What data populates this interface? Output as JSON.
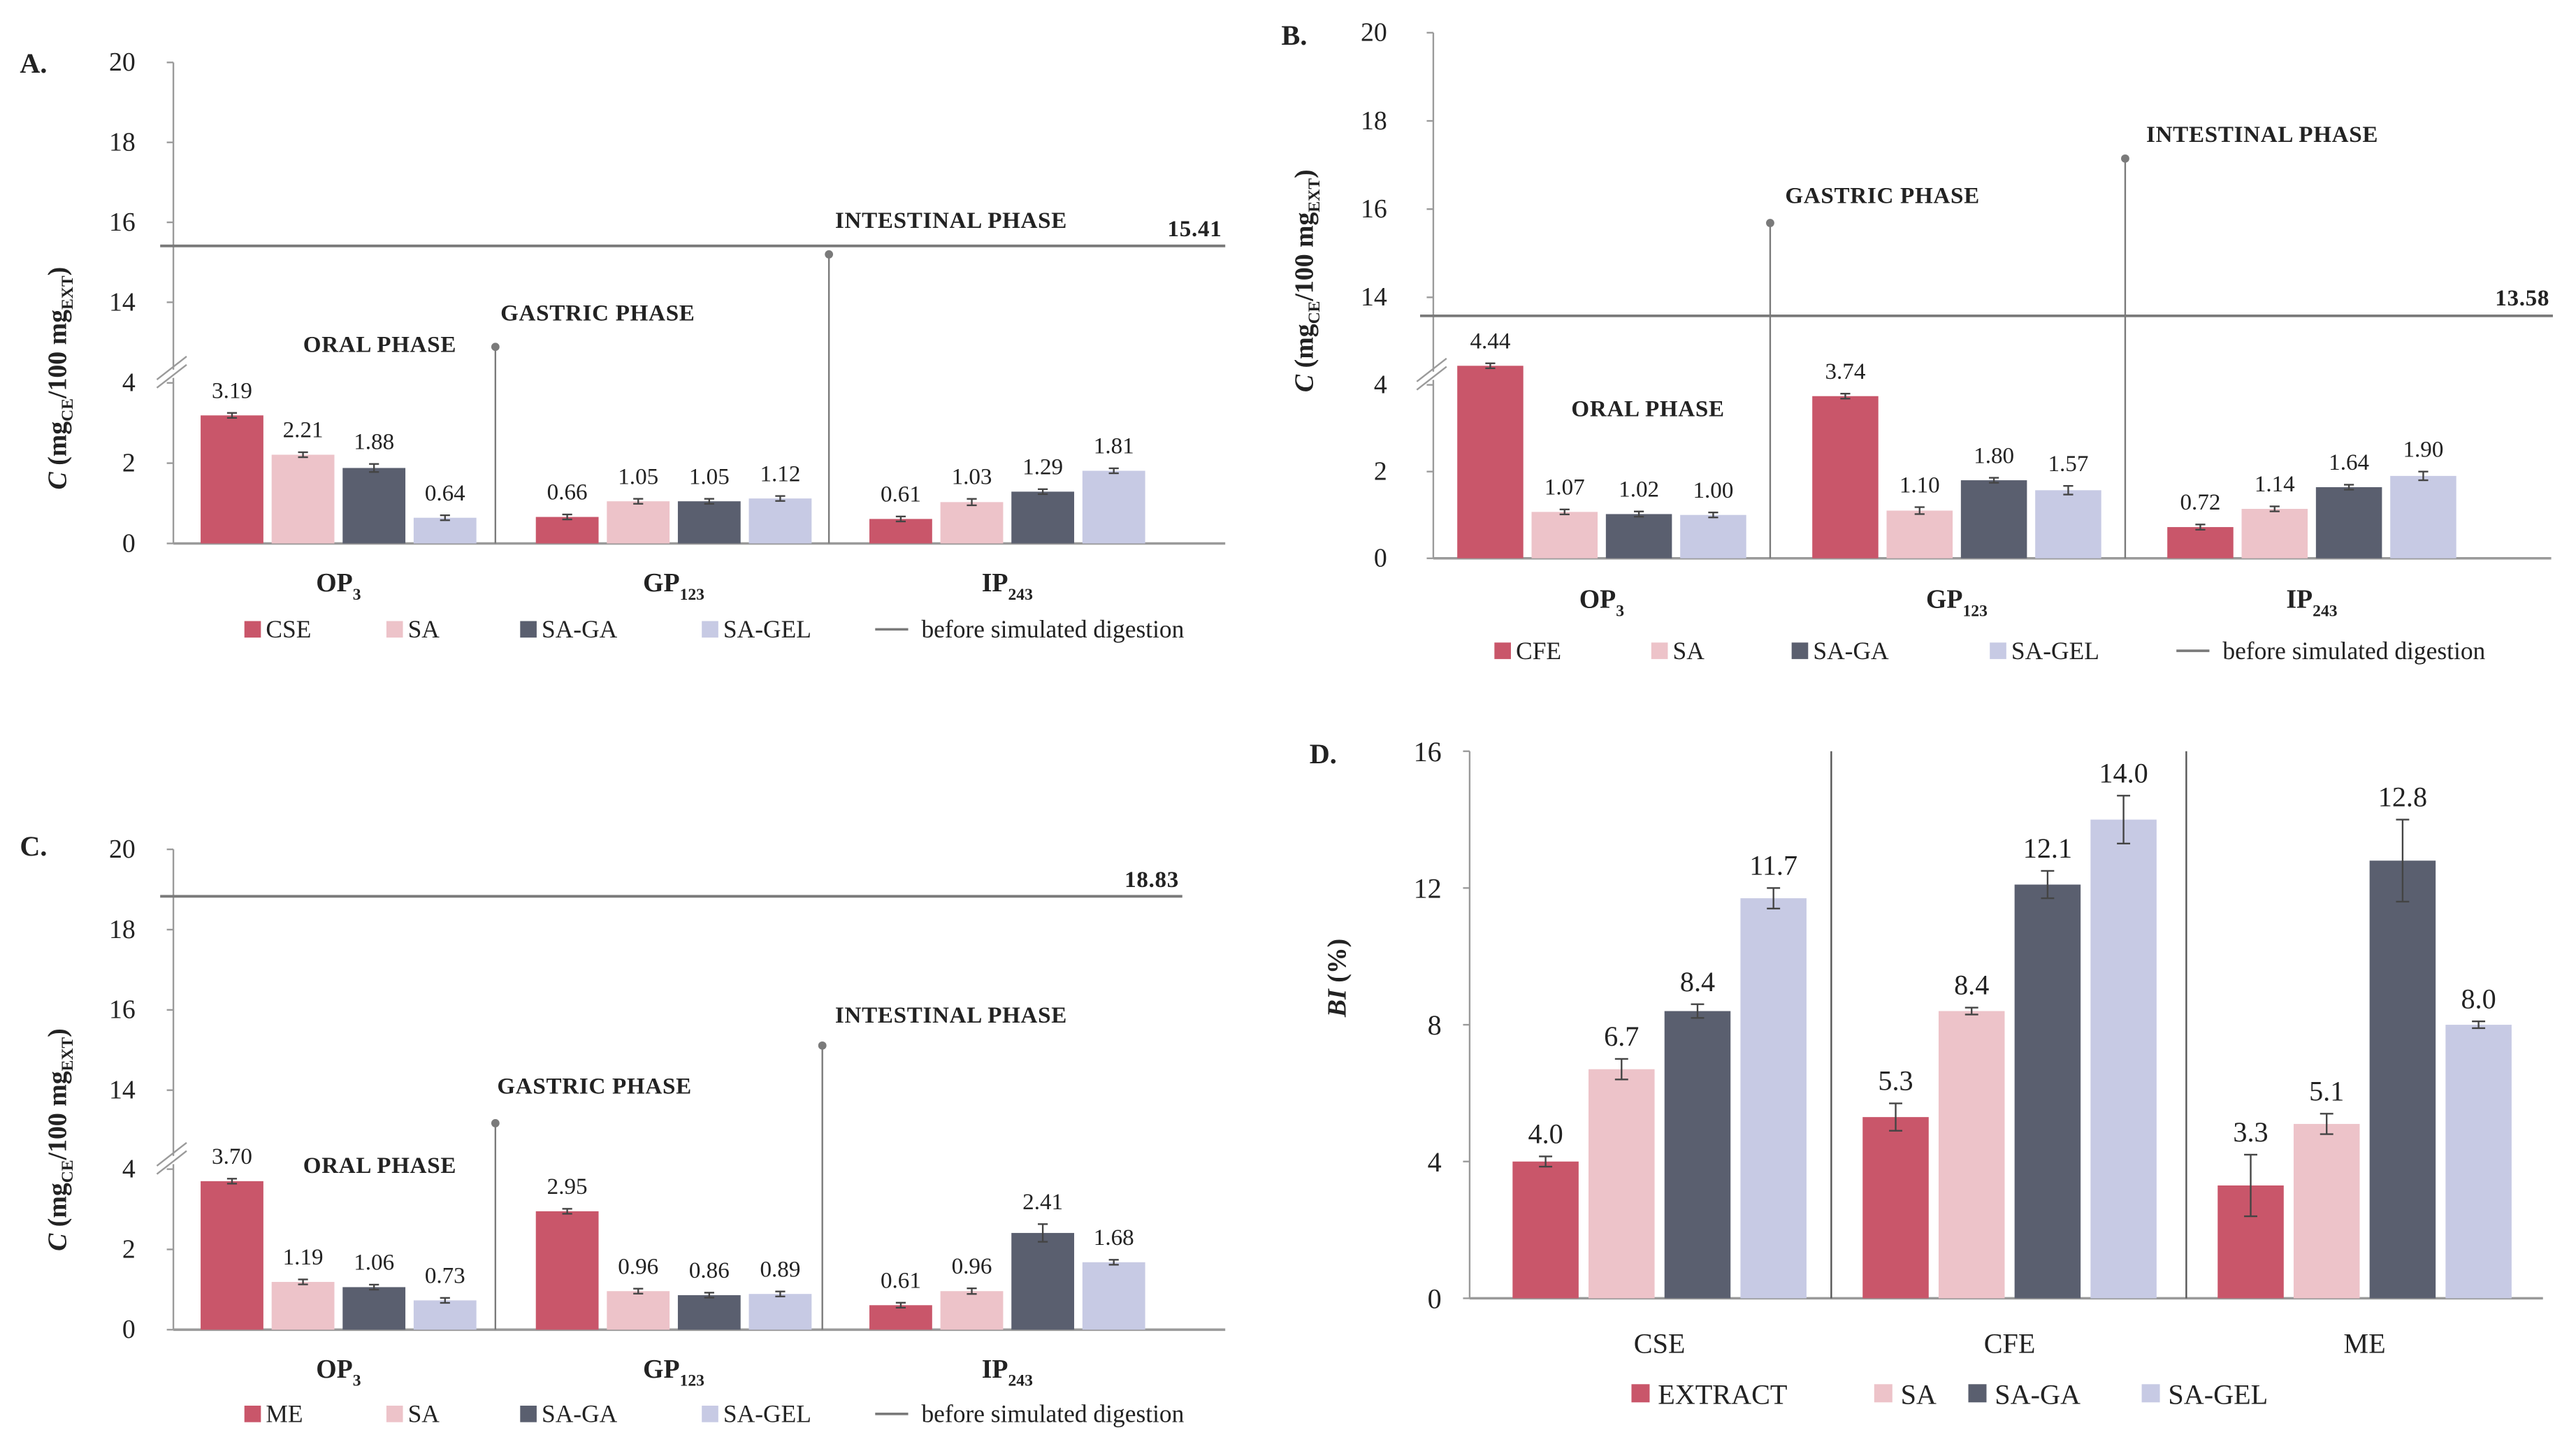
{
  "colors": {
    "extract": "#c9566a",
    "SA": "#edc3c9",
    "SA-GA": "#5a5f6f",
    "SA-GEL": "#c7cae4",
    "reference": "#7a7a7a",
    "axis": "#9a9a9a"
  },
  "chart_data": [
    {
      "type": "bar",
      "panel": "A.",
      "ylabel": {
        "main": "C",
        "open": " (mg",
        "sub1": "CE",
        "mid": "/100 mg",
        "sub2": "EXT",
        "close": ")"
      },
      "y_ticks": [
        0,
        2,
        4,
        14,
        16,
        18,
        20
      ],
      "ylim": [
        0,
        20
      ],
      "axis_break": [
        4.6,
        13.4
      ],
      "categories": [
        {
          "main": "OP",
          "sub": "3"
        },
        {
          "main": "GP",
          "sub": "123"
        },
        {
          "main": "IP",
          "sub": "243"
        }
      ],
      "series": [
        {
          "name": "CSE",
          "values": [
            3.19,
            0.66,
            0.61
          ],
          "errors": [
            0.04,
            0.04,
            0.03
          ],
          "labels": [
            "3.19",
            "0.66",
            "0.61"
          ]
        },
        {
          "name": "SA",
          "values": [
            2.21,
            1.05,
            1.03
          ],
          "errors": [
            0.06,
            0.04,
            0.08
          ],
          "labels": [
            "2.21",
            "1.05",
            "1.03"
          ]
        },
        {
          "name": "SA-GA",
          "values": [
            1.88,
            1.05,
            1.29
          ],
          "errors": [
            0.1,
            0.04,
            0.05
          ],
          "labels": [
            "1.88",
            "1.05",
            "1.29"
          ]
        },
        {
          "name": "SA-GEL",
          "values": [
            0.64,
            1.12,
            1.81
          ],
          "errors": [
            0.04,
            0.03,
            0.06
          ],
          "labels": [
            "0.64",
            "1.12",
            "1.81"
          ]
        }
      ],
      "reference": {
        "name": "before simulated digestion",
        "value": 15.41,
        "label": "15.41"
      },
      "phases": {
        "oral": "ORAL PHASE",
        "gastric": "GASTRIC PHASE",
        "intestinal": "INTESTINAL PHASE"
      },
      "grid": false,
      "legend": "bottom"
    },
    {
      "type": "bar",
      "panel": "B.",
      "ylabel": {
        "main": "C",
        "open": " (mg",
        "sub1": "CE",
        "mid": "/100 mg",
        "sub2": "EXT",
        "close": ")"
      },
      "y_ticks": [
        0,
        2,
        4,
        14,
        16,
        18,
        20
      ],
      "ylim": [
        0,
        20
      ],
      "axis_break": [
        4.6,
        13.4
      ],
      "categories": [
        {
          "main": "OP",
          "sub": "3"
        },
        {
          "main": "GP",
          "sub": "123"
        },
        {
          "main": "IP",
          "sub": "243"
        }
      ],
      "series": [
        {
          "name": "CFE",
          "values": [
            4.44,
            3.74,
            0.72
          ],
          "errors": [
            0.03,
            0.03,
            0.06
          ],
          "labels": [
            "4.44",
            "3.74",
            "0.72"
          ]
        },
        {
          "name": "SA",
          "values": [
            1.07,
            1.1,
            1.14
          ],
          "errors": [
            0.05,
            0.08,
            0.03
          ],
          "labels": [
            "1.07",
            "1.10",
            "1.14"
          ]
        },
        {
          "name": "SA-GA",
          "values": [
            1.02,
            1.8,
            1.64
          ],
          "errors": [
            0.06,
            0.05,
            0.05
          ],
          "labels": [
            "1.02",
            "1.80",
            "1.64"
          ]
        },
        {
          "name": "SA-GEL",
          "values": [
            1.0,
            1.57,
            1.9
          ],
          "errors": [
            0.03,
            0.1,
            0.1
          ],
          "labels": [
            "1.00",
            "1.57",
            "1.90"
          ]
        }
      ],
      "reference": {
        "name": "before simulated digestion",
        "value": 13.58,
        "label": "13.58"
      },
      "phases": {
        "oral": "ORAL PHASE",
        "gastric": "GASTRIC PHASE",
        "intestinal": "INTESTINAL PHASE"
      },
      "grid": false,
      "legend": "bottom"
    },
    {
      "type": "bar",
      "panel": "C.",
      "ylabel": {
        "main": "C",
        "open": " (mg",
        "sub1": "CE",
        "mid": "/100 mg",
        "sub2": "EXT",
        "close": ")"
      },
      "y_ticks": [
        0,
        2,
        4,
        14,
        16,
        18,
        20
      ],
      "ylim": [
        0,
        20
      ],
      "axis_break": [
        4.6,
        13.4
      ],
      "categories": [
        {
          "main": "OP",
          "sub": "3"
        },
        {
          "main": "GP",
          "sub": "123"
        },
        {
          "main": "IP",
          "sub": "243"
        }
      ],
      "series": [
        {
          "name": "ME",
          "values": [
            3.7,
            2.95,
            0.61
          ],
          "errors": [
            0.03,
            0.03,
            0.03
          ],
          "labels": [
            "3.70",
            "2.95",
            "0.61"
          ]
        },
        {
          "name": "SA",
          "values": [
            1.19,
            0.96,
            0.96
          ],
          "errors": [
            0.05,
            0.05,
            0.07
          ],
          "labels": [
            "1.19",
            "0.96",
            "0.96"
          ]
        },
        {
          "name": "SA-GA",
          "values": [
            1.06,
            0.86,
            2.41
          ],
          "errors": [
            0.04,
            0.03,
            0.22
          ],
          "labels": [
            "1.06",
            "0.86",
            "2.41"
          ]
        },
        {
          "name": "SA-GEL",
          "values": [
            0.73,
            0.89,
            1.68
          ],
          "errors": [
            0.04,
            0.05,
            0.04
          ],
          "labels": [
            "0.73",
            "0.89",
            "1.68"
          ]
        }
      ],
      "reference": {
        "name": "before simulated digestion",
        "value": 18.83,
        "label": "18.83"
      },
      "phases": {
        "oral": "ORAL PHASE",
        "gastric": "GASTRIC PHASE",
        "intestinal": "INTESTINAL PHASE"
      },
      "grid": false,
      "legend": "bottom"
    },
    {
      "type": "bar",
      "panel": "D.",
      "ylabel": {
        "main": "BI",
        "rest": " (%)"
      },
      "y_ticks": [
        0,
        4,
        8,
        12,
        16
      ],
      "ylim": [
        0,
        16
      ],
      "categories": [
        "CSE",
        "CFE",
        "ME"
      ],
      "series": [
        {
          "name": "EXTRACT",
          "values": [
            4.0,
            5.3,
            3.3
          ],
          "errors": [
            0.15,
            0.4,
            0.9
          ],
          "labels": [
            "4.0",
            "5.3",
            "3.3"
          ]
        },
        {
          "name": "SA",
          "values": [
            6.7,
            8.4,
            5.1
          ],
          "errors": [
            0.3,
            0.1,
            0.3
          ],
          "labels": [
            "6.7",
            "8.4",
            "5.1"
          ]
        },
        {
          "name": "SA-GA",
          "values": [
            8.4,
            12.1,
            12.8
          ],
          "errors": [
            0.2,
            0.4,
            1.2
          ],
          "labels": [
            "8.4",
            "12.1",
            "12.8"
          ]
        },
        {
          "name": "SA-GEL",
          "values": [
            11.7,
            14.0,
            8.0
          ],
          "errors": [
            0.3,
            0.7,
            0.1
          ],
          "labels": [
            "11.7",
            "14.0",
            "8.0"
          ]
        }
      ],
      "grid": false,
      "legend": "bottom"
    }
  ]
}
